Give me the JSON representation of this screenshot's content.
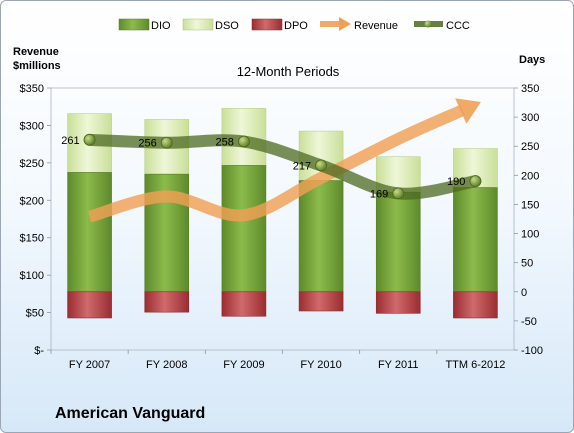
{
  "company_name": "American Vanguard",
  "chart_data": {
    "type": "bar",
    "title": "12-Month Periods",
    "categories": [
      "FY 2007",
      "FY 2008",
      "FY 2009",
      "FY 2010",
      "FY 2011",
      "TTM 6-2012"
    ],
    "left_axis": {
      "label_line1": "Revenue",
      "label_line2": "$millions",
      "range": [
        0,
        350
      ],
      "ticks": [
        "$-",
        "$50",
        "$100",
        "$150",
        "$200",
        "$250",
        "$300",
        "$350"
      ]
    },
    "right_axis": {
      "label": "Days",
      "range": [
        -100,
        350
      ],
      "ticks": [
        "-100",
        "-50",
        "0",
        "50",
        "100",
        "150",
        "200",
        "250",
        "300",
        "350"
      ]
    },
    "series": [
      {
        "name": "DIO",
        "axis": "days",
        "color": "#77a33a",
        "values": [
          205,
          202,
          217,
          191,
          171,
          179
        ]
      },
      {
        "name": "DSO",
        "axis": "days",
        "color": "#d4e8a8",
        "values": [
          101,
          94,
          98,
          85,
          61,
          67
        ]
      },
      {
        "name": "DPO",
        "axis": "days",
        "color": "#b23b3e",
        "values": [
          -45,
          -35,
          -42,
          -33,
          -37,
          -45
        ]
      },
      {
        "name": "Revenue",
        "axis": "revenue",
        "color": "#f0a055",
        "values": [
          178,
          205,
          180,
          230,
          282,
          328
        ]
      },
      {
        "name": "CCC",
        "axis": "days",
        "color": "#55702a",
        "values": [
          261,
          256,
          258,
          217,
          169,
          190
        ]
      }
    ],
    "ccc_labels": [
      "261",
      "256",
      "258",
      "217",
      "169",
      "190"
    ],
    "legend": [
      "DIO",
      "DSO",
      "DPO",
      "Revenue",
      "CCC"
    ],
    "legend_position": "top",
    "grid": false
  }
}
